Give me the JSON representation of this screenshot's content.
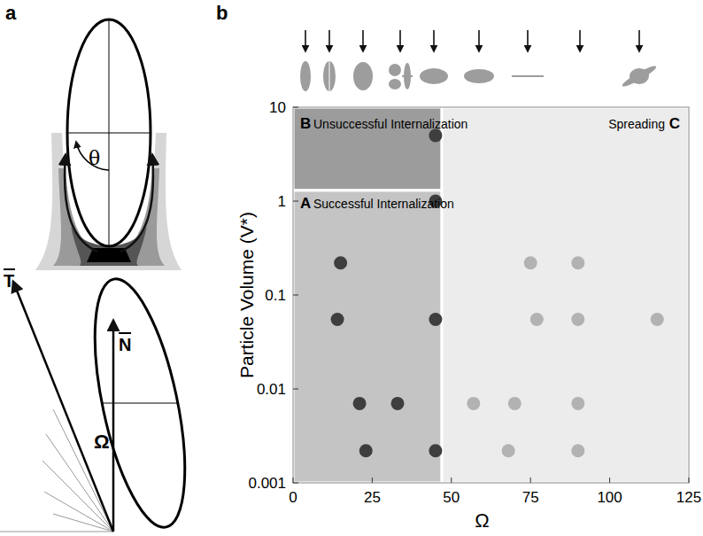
{
  "panel_labels": [
    "a",
    "b"
  ],
  "diagram": {
    "labels": {
      "theta": "θ",
      "tangent": "T",
      "normal": "N",
      "omega": "Ω"
    }
  },
  "chart_data": {
    "type": "scatter",
    "x_label": "Ω",
    "y_label": "Particle Volume (V*)",
    "xlim": [
      0,
      125
    ],
    "xticks": [
      0,
      25,
      50,
      75,
      100,
      125
    ],
    "ylim": [
      0.001,
      10
    ],
    "yticks": [
      0.001,
      0.01,
      0.1,
      1,
      10
    ],
    "log": "y",
    "grid": false,
    "regions": [
      {
        "letter": "B",
        "label": "Unsuccessful Internalization",
        "xlim": [
          0,
          47
        ],
        "ylim": [
          1.3,
          10
        ],
        "color": "#9c9c9c"
      },
      {
        "letter": "A",
        "label": "Successful Internalization",
        "xlim": [
          0,
          47
        ],
        "ylim": [
          0.001,
          1.3
        ],
        "color": "#c4c4c4"
      },
      {
        "letter": "C",
        "label": "Spreading",
        "xlim": [
          47,
          125
        ],
        "ylim": [
          0.001,
          10
        ],
        "color": "#ececec"
      }
    ],
    "series": [
      {
        "color": "#3e3e3e",
        "marker": "circle",
        "x": [
          45,
          45,
          15,
          14,
          45,
          21,
          33,
          23,
          45
        ],
        "values": [
          5,
          1,
          0.22,
          0.055,
          0.055,
          0.007,
          0.007,
          0.0022,
          0.0022
        ]
      },
      {
        "color": "#b2b2b2",
        "marker": "circle",
        "x": [
          75,
          90,
          77,
          90,
          115,
          57,
          70,
          90,
          68,
          90
        ],
        "values": [
          0.22,
          0.22,
          0.055,
          0.055,
          0.055,
          0.007,
          0.007,
          0.007,
          0.0022,
          0.0022
        ]
      }
    ]
  }
}
